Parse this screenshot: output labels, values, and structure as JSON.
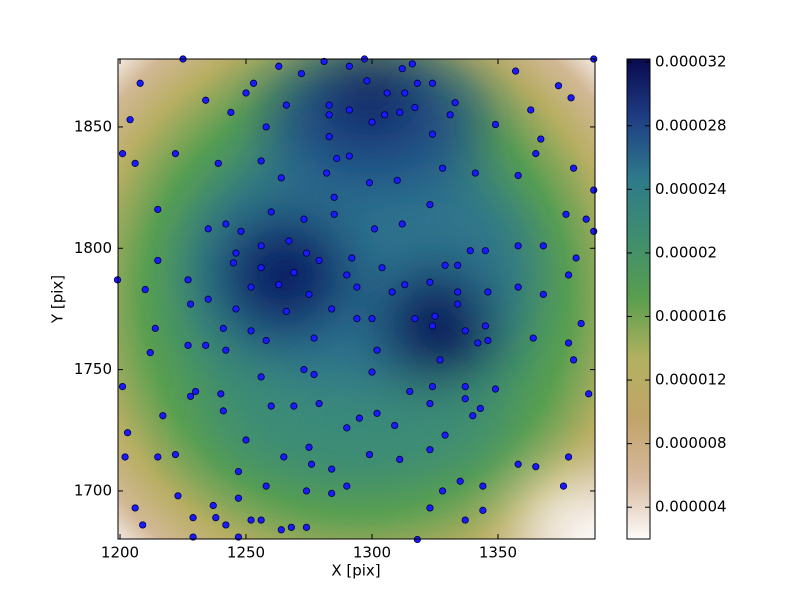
{
  "chart_data": {
    "type": "scatter",
    "xlabel": "X [pix]",
    "ylabel": "Y [pix]",
    "xlim": [
      1199.2,
      1388.5
    ],
    "ylim": [
      1680.2,
      1878
    ],
    "xticks": [
      1200,
      1250,
      1300,
      1350
    ],
    "yticks": [
      1700,
      1750,
      1800,
      1850
    ],
    "color": "#1a1aff",
    "x": [
      1225,
      1208,
      1204,
      1201,
      1206,
      1222,
      1234,
      1250,
      1253,
      1263,
      1272,
      1266,
      1244,
      1258,
      1239,
      1256,
      1264,
      1281,
      1291,
      1297,
      1298,
      1306,
      1313,
      1312,
      1316,
      1318,
      1324,
      1283,
      1283,
      1291,
      1300,
      1305,
      1311,
      1317,
      1324,
      1283,
      1286,
      1291,
      1282,
      1299,
      1310,
      1328,
      1333,
      1331,
      1341,
      1349,
      1357,
      1363,
      1367,
      1365,
      1358,
      1374,
      1379,
      1380,
      1388,
      1388,
      1385,
      1377,
      1215,
      1215,
      1210,
      1199,
      1235,
      1242,
      1248,
      1256,
      1246,
      1245,
      1227,
      1228,
      1235,
      1260,
      1273,
      1285,
      1285,
      1267,
      1274,
      1256,
      1269,
      1263,
      1252,
      1279,
      1275,
      1266,
      1301,
      1312,
      1323,
      1292,
      1290,
      1294,
      1304,
      1308,
      1313,
      1323,
      1329,
      1334,
      1339,
      1345,
      1334,
      1346,
      1358,
      1358,
      1368,
      1368,
      1378,
      1381,
      1383,
      1378,
      1380,
      1388,
      1364,
      1214,
      1212,
      1227,
      1234,
      1241,
      1242,
      1252,
      1258,
      1246,
      1284,
      1294,
      1300,
      1302,
      1317,
      1325,
      1324,
      1334,
      1337,
      1342,
      1346,
      1345,
      1327,
      1277,
      1300,
      1315,
      1324,
      1337,
      1337,
      1340,
      1343,
      1349,
      1273,
      1277,
      1256,
      1201,
      1240,
      1230,
      1228,
      1217,
      1241,
      1260,
      1269,
      1279,
      1295,
      1302,
      1309,
      1323,
      1290,
      1203,
      1250,
      1275,
      1276,
      1202,
      1215,
      1222,
      1265,
      1299,
      1311,
      1323,
      1329,
      1358,
      1365,
      1378,
      1247,
      1284,
      1258,
      1290,
      1274,
      1284,
      1335,
      1344,
      1328,
      1223,
      1247,
      1376,
      1386,
      1206,
      1237,
      1323,
      1229,
      1238,
      1256,
      1344,
      1337,
      1209,
      1242,
      1252,
      1264,
      1268,
      1274,
      1229,
      1247,
      1318
    ],
    "y": [
      1878,
      1868,
      1853,
      1839,
      1835,
      1839,
      1861,
      1864,
      1868,
      1875,
      1872,
      1859,
      1856,
      1850,
      1835,
      1836,
      1829,
      1877,
      1875,
      1878,
      1869,
      1864,
      1864,
      1874,
      1876,
      1868,
      1868,
      1859,
      1855,
      1857,
      1852,
      1855,
      1856,
      1858,
      1847,
      1846,
      1837,
      1838,
      1831,
      1827,
      1828,
      1833,
      1860,
      1855,
      1831,
      1851,
      1873,
      1857,
      1845,
      1839,
      1830,
      1867,
      1862,
      1833,
      1878,
      1824,
      1812,
      1814,
      1816,
      1795,
      1783,
      1787,
      1808,
      1810,
      1807,
      1801,
      1798,
      1794,
      1787,
      1777,
      1779,
      1815,
      1812,
      1814,
      1821,
      1803,
      1798,
      1792,
      1790,
      1785,
      1784,
      1795,
      1781,
      1774,
      1808,
      1810,
      1818,
      1796,
      1789,
      1784,
      1792,
      1782,
      1785,
      1786,
      1793,
      1793,
      1799,
      1799,
      1782,
      1782,
      1784,
      1801,
      1801,
      1781,
      1789,
      1796,
      1769,
      1761,
      1754,
      1807,
      1763,
      1767,
      1757,
      1760,
      1760,
      1767,
      1758,
      1766,
      1762,
      1775,
      1775,
      1771,
      1771,
      1758,
      1771,
      1772,
      1768,
      1777,
      1766,
      1761,
      1762,
      1768,
      1754,
      1763,
      1749,
      1741,
      1743,
      1743,
      1738,
      1731,
      1734,
      1742,
      1750,
      1748,
      1747,
      1743,
      1740,
      1741,
      1739,
      1731,
      1733,
      1735,
      1735,
      1736,
      1730,
      1732,
      1727,
      1736,
      1726,
      1724,
      1721,
      1718,
      1711,
      1714,
      1714,
      1715,
      1714,
      1715,
      1713,
      1717,
      1723,
      1711,
      1710,
      1714,
      1708,
      1709,
      1702,
      1702,
      1700,
      1699,
      1704,
      1702,
      1700,
      1698,
      1697,
      1702,
      1740,
      1693,
      1694,
      1693,
      1689,
      1689,
      1688,
      1692,
      1688,
      1686,
      1686,
      1688,
      1684,
      1685,
      1685,
      1681,
      1681,
      1680
    ],
    "colorbar": {
      "lim": [
        2e-06,
        3.22e-05
      ],
      "ticks": [
        4e-06,
        8e-06,
        1.2e-05,
        1.6e-05,
        2e-05,
        2.4e-05,
        2.8e-05,
        3.2e-05
      ],
      "colors": [
        "#fdfbfb",
        "#d7b99e",
        "#c1a46a",
        "#b3b160",
        "#5a9e4e",
        "#3f8e6e",
        "#2e7a8a",
        "#1f3f84",
        "#0a0a50"
      ]
    }
  }
}
